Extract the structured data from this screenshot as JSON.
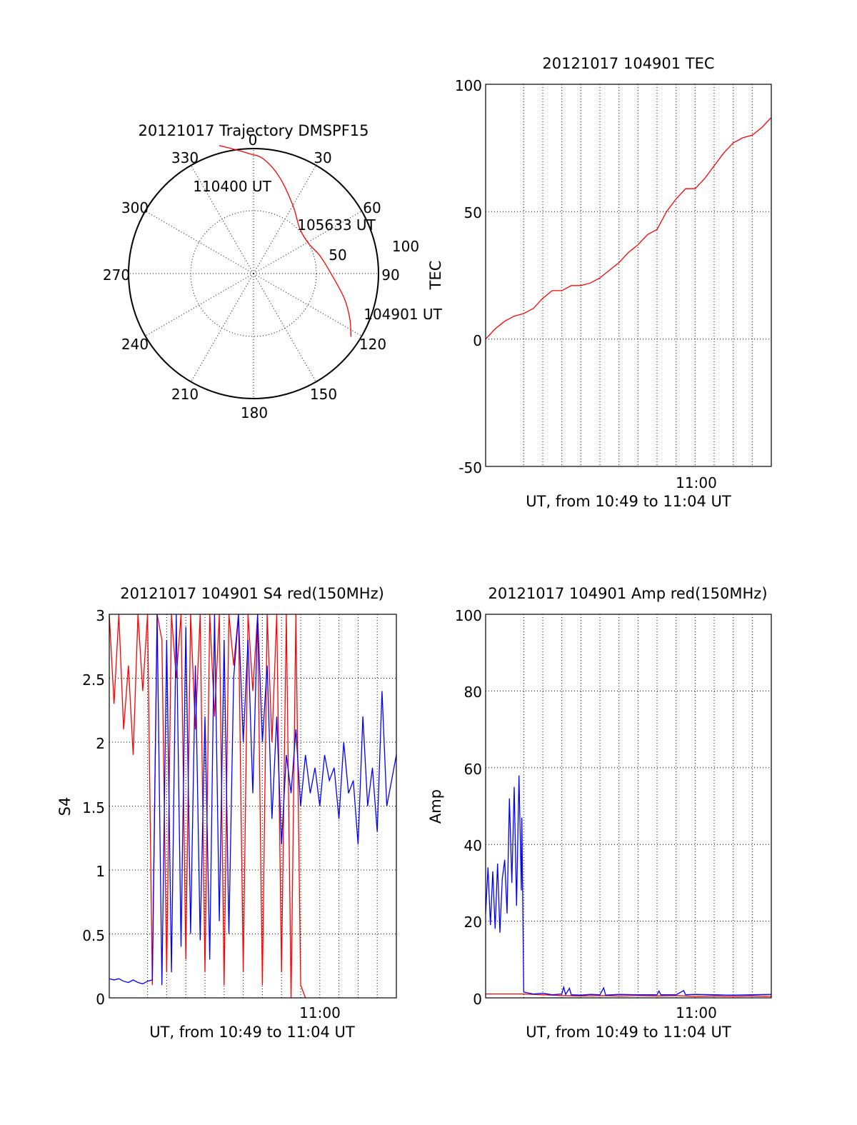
{
  "colors": {
    "red": "#ff0000",
    "blue": "#0000ff",
    "axis": "#000000",
    "background": "#ffffff"
  },
  "polar": {
    "title": "20121017 Trajectory DMSPF15",
    "azimuth_labels": [
      "0",
      "30",
      "60",
      "90",
      "120",
      "150",
      "180",
      "210",
      "240",
      "270",
      "300",
      "330"
    ],
    "ring_labels": [
      "50",
      "100"
    ],
    "annotations": [
      "110400 UT",
      "105633 UT",
      "104901 UT"
    ]
  },
  "chart_data": [
    {
      "id": "trajectory",
      "type": "scatter",
      "projection": "polar",
      "title": "20121017 Trajectory DMSPF15",
      "azimuth_ticks": [
        0,
        30,
        60,
        90,
        120,
        150,
        180,
        210,
        240,
        270,
        300,
        330
      ],
      "radius_rings": [
        50,
        100
      ],
      "series": [
        {
          "color": "#ff0000",
          "points_az_r": [
            [
              123,
              93
            ],
            [
              115,
              85
            ],
            [
              105,
              75
            ],
            [
              90,
              62
            ],
            [
              75,
              55
            ],
            [
              60,
              50
            ],
            [
              45,
              52
            ],
            [
              30,
              63
            ],
            [
              15,
              80
            ],
            [
              5,
              92
            ],
            [
              -2,
              96
            ],
            [
              -8,
              100
            ],
            [
              -15,
              106
            ]
          ]
        }
      ],
      "annotations": [
        {
          "text": "110400 UT",
          "az": -15,
          "r": 106
        },
        {
          "text": "105633 UT",
          "az": 60,
          "r": 50
        },
        {
          "text": "104901 UT",
          "az": 123,
          "r": 93
        }
      ]
    },
    {
      "id": "tec",
      "type": "line",
      "title": "20121017 104901 TEC",
      "xlabel": "UT, from 10:49 to 11:04 UT",
      "ylabel": "TEC",
      "x_tick_labels": [
        "11:00"
      ],
      "ylim": [
        -50,
        100
      ],
      "y_ticks": [
        -50,
        0,
        50,
        100
      ],
      "grid": true,
      "series": [
        {
          "color": "#ff0000",
          "x": [
            0,
            0.5,
            1,
            1.5,
            2,
            2.5,
            3,
            3.5,
            4,
            4.5,
            5,
            5.5,
            6,
            6.5,
            7,
            7.5,
            8,
            8.5,
            9,
            9.5,
            10,
            10.5,
            11,
            11.5,
            12,
            12.5,
            13,
            13.5,
            14,
            14.5,
            15
          ],
          "y": [
            0,
            4,
            7,
            9,
            10,
            12,
            16,
            19,
            19,
            21,
            21,
            22,
            24,
            27,
            30,
            34,
            37,
            41,
            43,
            50,
            55,
            59,
            59,
            63,
            68,
            73,
            77,
            79,
            80,
            83,
            87
          ]
        }
      ]
    },
    {
      "id": "s4",
      "type": "line",
      "title": "20121017 104901 S4 red(150MHz)",
      "xlabel": "UT, from 10:49 to 11:04 UT",
      "ylabel": "S4",
      "x_tick_labels": [
        "11:00"
      ],
      "ylim": [
        0,
        3
      ],
      "y_ticks": [
        0,
        0.5,
        1,
        1.5,
        2,
        2.5,
        3
      ],
      "y_tick_labels": [
        "0",
        "0.5",
        "1",
        "1.5",
        "2",
        "2.5",
        "3"
      ],
      "grid": true,
      "series": [
        {
          "color": "#ff0000",
          "x": [
            0,
            0.25,
            0.5,
            0.75,
            1,
            1.25,
            1.5,
            1.75,
            2,
            2.25,
            2.5,
            2.75,
            3,
            3.25,
            3.5,
            3.75,
            4,
            4.25,
            4.5,
            4.75,
            5,
            5.25,
            5.5,
            5.75,
            6,
            6.25,
            6.5,
            6.75,
            7,
            7.25,
            7.5,
            7.75,
            8,
            8.25,
            8.5,
            8.75,
            9,
            9.25,
            9.5,
            9.75,
            10.0,
            10.25
          ],
          "y": [
            3,
            2.3,
            3,
            2.1,
            2.6,
            1.9,
            3,
            2.4,
            3,
            0.1,
            3,
            2.8,
            0.2,
            3,
            2.5,
            3,
            0.3,
            3,
            2.1,
            3,
            0.2,
            3,
            2.2,
            3,
            0.1,
            3,
            2.6,
            3,
            0.2,
            3,
            2.4,
            3,
            0.1,
            3,
            2.0,
            3,
            0.2,
            3,
            0.0,
            3,
            0.1,
            0.0
          ]
        },
        {
          "color": "#0000ff",
          "x": [
            0.0,
            0.25,
            0.5,
            0.75,
            1.0,
            1.25,
            1.5,
            1.75,
            2.0,
            2.25,
            2.5,
            2.75,
            3.0,
            3.25,
            3.5,
            3.75,
            4.0,
            4.25,
            4.5,
            4.75,
            5.0,
            5.25,
            5.5,
            5.75,
            6.0,
            6.25,
            6.5,
            6.75,
            7.0,
            7.25,
            7.5,
            7.75,
            8.0,
            8.25,
            8.5,
            8.75,
            9.0,
            9.25,
            9.5,
            9.75,
            10.0,
            10.25,
            10.5,
            10.75,
            11.0,
            11.25,
            11.5,
            11.75,
            12.0,
            12.25,
            12.5,
            12.75,
            13.0,
            13.25,
            13.5,
            13.75,
            14.0,
            14.25,
            14.5,
            14.75,
            15.0
          ],
          "y": [
            0.15,
            0.14,
            0.15,
            0.13,
            0.12,
            0.14,
            0.12,
            0.11,
            0.13,
            0.14,
            3.0,
            0.1,
            2.8,
            0.2,
            3.0,
            0.4,
            2.9,
            0.5,
            2.6,
            0.45,
            2.2,
            0.3,
            3.0,
            0.6,
            2.8,
            0.5,
            2.5,
            3.0,
            2.0,
            2.8,
            1.6,
            3.0,
            2.0,
            2.6,
            1.4,
            2.2,
            1.2,
            1.9,
            1.6,
            2.1,
            1.5,
            1.9,
            1.6,
            1.8,
            1.5,
            1.9,
            1.7,
            1.8,
            1.4,
            2.0,
            1.6,
            1.7,
            1.2,
            2.2,
            1.5,
            1.8,
            1.3,
            2.4,
            1.5,
            1.7,
            1.9
          ]
        }
      ]
    },
    {
      "id": "amp",
      "type": "line",
      "title": "20121017 104901 Amp red(150MHz)",
      "xlabel": "UT, from 10:49 to 11:04 UT",
      "ylabel": "Amp",
      "x_tick_labels": [
        "11:00"
      ],
      "ylim": [
        0,
        100
      ],
      "y_ticks": [
        0,
        20,
        40,
        60,
        80,
        100
      ],
      "grid": true,
      "series": [
        {
          "color": "#ff0000",
          "x": [
            0,
            1,
            2,
            3,
            4,
            5,
            6,
            7,
            8,
            9,
            10,
            11,
            12,
            13,
            14,
            15
          ],
          "y": [
            1,
            1,
            1,
            0.8,
            0.6,
            0.5,
            0.6,
            0.5,
            0.6,
            0.5,
            0.6,
            0.4,
            0.5,
            0.4,
            0.5,
            0.4
          ]
        },
        {
          "color": "#0000ff",
          "x": [
            0.0,
            0.125,
            0.25,
            0.375,
            0.5,
            0.625,
            0.75,
            0.875,
            1.0,
            1.125,
            1.25,
            1.375,
            1.5,
            1.625,
            1.75,
            1.875,
            1.9,
            2.0,
            2.5,
            3.0,
            3.5,
            4.0,
            4.1,
            4.2,
            4.4,
            4.5,
            5.0,
            5.5,
            6.0,
            6.2,
            6.3,
            7.0,
            8.0,
            9.0,
            9.1,
            9.2,
            10.0,
            10.4,
            10.5,
            11.0,
            12.0,
            13.0,
            14.0,
            15.0
          ],
          "y": [
            22,
            34,
            19,
            33,
            18,
            35,
            17,
            31,
            36,
            22,
            52,
            30,
            55,
            24,
            58,
            28,
            47,
            1.5,
            1.0,
            1.2,
            0.8,
            1.0,
            2.8,
            0.9,
            2.5,
            0.8,
            0.7,
            0.9,
            0.8,
            2.6,
            0.7,
            0.9,
            0.8,
            0.8,
            1.8,
            0.8,
            0.8,
            1.9,
            0.8,
            0.9,
            0.8,
            0.7,
            0.8,
            0.9
          ]
        }
      ]
    }
  ]
}
